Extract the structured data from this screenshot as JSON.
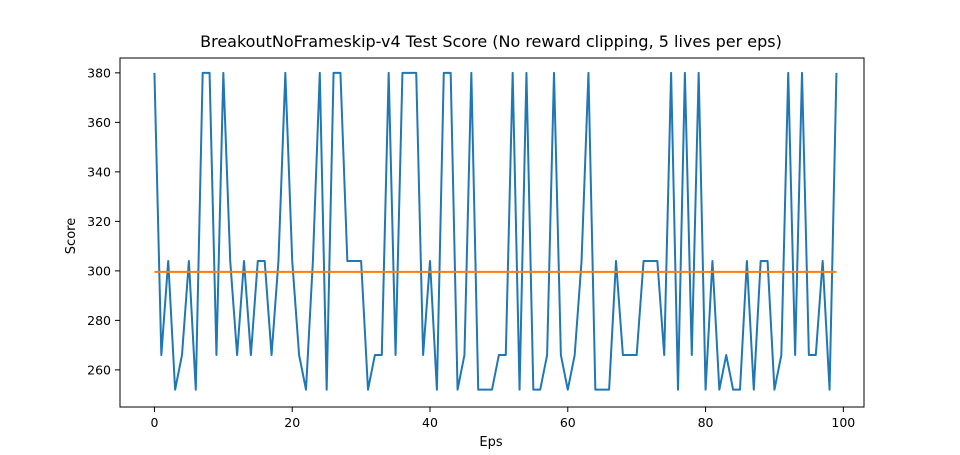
{
  "chart_data": {
    "type": "line",
    "title": "BreakoutNoFrameskip-v4 Test Score (No reward clipping, 5 lives per eps)",
    "xlabel": "Eps",
    "ylabel": "Score",
    "xlim": [
      -5,
      103
    ],
    "ylim": [
      245,
      386
    ],
    "x_ticks": [
      0,
      20,
      40,
      60,
      80,
      100
    ],
    "y_ticks": [
      260,
      280,
      300,
      320,
      340,
      360,
      380
    ],
    "grid": false,
    "series": [
      {
        "color": "#1f77b4",
        "x": [
          0,
          1,
          2,
          3,
          4,
          5,
          6,
          7,
          8,
          9,
          10,
          11,
          12,
          13,
          14,
          15,
          16,
          17,
          18,
          19,
          20,
          21,
          22,
          23,
          24,
          25,
          26,
          27,
          28,
          29,
          30,
          31,
          32,
          33,
          34,
          35,
          36,
          37,
          38,
          39,
          40,
          41,
          42,
          43,
          44,
          45,
          46,
          47,
          48,
          49,
          50,
          51,
          52,
          53,
          54,
          55,
          56,
          57,
          58,
          59,
          60,
          61,
          62,
          63,
          64,
          65,
          66,
          67,
          68,
          69,
          70,
          71,
          72,
          73,
          74,
          75,
          76,
          77,
          78,
          79,
          80,
          81,
          82,
          83,
          84,
          85,
          86,
          87,
          88,
          89,
          90,
          91,
          92,
          93,
          94,
          95,
          96,
          97,
          98,
          99
        ],
        "y": [
          380,
          266,
          304,
          252,
          266,
          304,
          252,
          380,
          380,
          266,
          380,
          304,
          266,
          304,
          266,
          304,
          304,
          266,
          304,
          380,
          304,
          266,
          252,
          304,
          380,
          252,
          380,
          380,
          304,
          304,
          304,
          252,
          266,
          266,
          380,
          266,
          380,
          380,
          380,
          266,
          304,
          252,
          380,
          380,
          252,
          266,
          380,
          252,
          252,
          252,
          266,
          266,
          380,
          252,
          380,
          252,
          252,
          266,
          380,
          266,
          252,
          266,
          304,
          380,
          252,
          252,
          252,
          304,
          266,
          266,
          266,
          304,
          304,
          304,
          266,
          380,
          252,
          380,
          266,
          380,
          252,
          304,
          252,
          266,
          252,
          252,
          304,
          252,
          304,
          304,
          252,
          266,
          380,
          266,
          380,
          266,
          266,
          304,
          252,
          380
        ]
      },
      {
        "color": "#ff7f0e",
        "x": [
          0,
          99
        ],
        "y": [
          299.6,
          299.6
        ]
      }
    ]
  }
}
